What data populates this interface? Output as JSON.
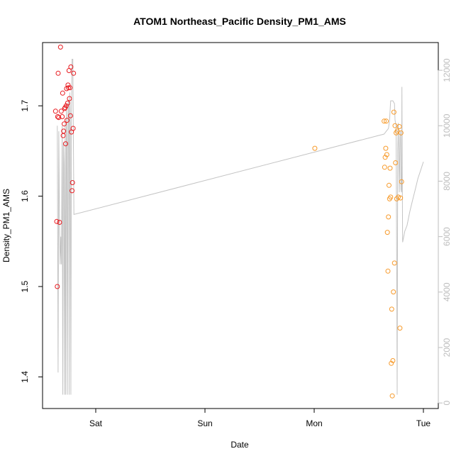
{
  "chart_data": {
    "type": "scatter",
    "title": "ATOM1 Northeast_Pacific Density_PM1_AMS",
    "xlabel": "Date",
    "ylabel": "Density_PM1_AMS",
    "x_range_days": [
      -0.42,
      3.06
    ],
    "ylim": [
      1.365,
      1.77
    ],
    "y_ticks": [
      1.4,
      1.5,
      1.6,
      1.7
    ],
    "y2lim": [
      -200,
      13000
    ],
    "y2_ticks": [
      0,
      2000,
      4000,
      6000,
      8000,
      10000,
      12000
    ],
    "x_ticks": [
      {
        "label": "Sat",
        "day": 0
      },
      {
        "label": "Sun",
        "day": 1
      },
      {
        "label": "Mon",
        "day": 2
      },
      {
        "label": "Tue",
        "day": 3
      }
    ],
    "colors": {
      "series_1": "#e8191e",
      "series_2": "#f79a2a",
      "line": "#c4c4c4",
      "right_axis": "#bdbdbd"
    },
    "series": [
      {
        "color": "#e8191e",
        "points": [
          [
            -0.368,
            1.694
          ],
          [
            -0.357,
            1.572
          ],
          [
            -0.352,
            1.5
          ],
          [
            -0.348,
            1.688
          ],
          [
            -0.344,
            1.736
          ],
          [
            -0.339,
            1.687
          ],
          [
            -0.332,
            1.571
          ],
          [
            -0.323,
            1.765
          ],
          [
            -0.316,
            1.694
          ],
          [
            -0.307,
            1.688
          ],
          [
            -0.303,
            1.714
          ],
          [
            -0.298,
            1.667
          ],
          [
            -0.294,
            1.672
          ],
          [
            -0.289,
            1.68
          ],
          [
            -0.285,
            1.697
          ],
          [
            -0.28,
            1.698
          ],
          [
            -0.276,
            1.658
          ],
          [
            -0.271,
            1.7
          ],
          [
            -0.267,
            1.719
          ],
          [
            -0.263,
            1.684
          ],
          [
            -0.258,
            1.703
          ],
          [
            -0.254,
            1.723
          ],
          [
            -0.25,
            1.72
          ],
          [
            -0.245,
            1.739
          ],
          [
            -0.241,
            1.708
          ],
          [
            -0.236,
            1.72
          ],
          [
            -0.232,
            1.689
          ],
          [
            -0.228,
            1.743
          ],
          [
            -0.223,
            1.671
          ],
          [
            -0.217,
            1.606
          ],
          [
            -0.213,
            1.615
          ],
          [
            -0.207,
            1.675
          ],
          [
            -0.203,
            1.736
          ]
        ]
      },
      {
        "color": "#f79a2a",
        "points": [
          [
            2.006,
            1.653
          ],
          [
            2.64,
            1.683
          ],
          [
            2.645,
            1.632
          ],
          [
            2.65,
            1.643
          ],
          [
            2.655,
            1.653
          ],
          [
            2.66,
            1.683
          ],
          [
            2.665,
            1.646
          ],
          [
            2.67,
            1.56
          ],
          [
            2.675,
            1.517
          ],
          [
            2.68,
            1.577
          ],
          [
            2.685,
            1.612
          ],
          [
            2.69,
            1.597
          ],
          [
            2.695,
            1.631
          ],
          [
            2.7,
            1.599
          ],
          [
            2.706,
            1.415
          ],
          [
            2.71,
            1.475
          ],
          [
            2.715,
            1.379
          ],
          [
            2.72,
            1.418
          ],
          [
            2.725,
            1.494
          ],
          [
            2.73,
            1.693
          ],
          [
            2.735,
            1.526
          ],
          [
            2.74,
            1.678
          ],
          [
            2.745,
            1.637
          ],
          [
            2.75,
            1.67
          ],
          [
            2.755,
            1.597
          ],
          [
            2.76,
            1.672
          ],
          [
            2.77,
            1.599
          ],
          [
            2.78,
            1.677
          ],
          [
            2.785,
            1.454
          ],
          [
            2.79,
            1.598
          ],
          [
            2.795,
            1.67
          ],
          [
            2.8,
            1.616
          ]
        ]
      }
    ],
    "line_series": {
      "axis": "right",
      "color": "#c4c4c4",
      "points": [
        [
          -0.352,
          10000
        ],
        [
          -0.345,
          1100
        ],
        [
          -0.338,
          9800
        ],
        [
          -0.331,
          6200
        ],
        [
          -0.326,
          5000
        ],
        [
          -0.32,
          6000
        ],
        [
          -0.314,
          5000
        ],
        [
          -0.307,
          10000
        ],
        [
          -0.302,
          300
        ],
        [
          -0.296,
          9400
        ],
        [
          -0.291,
          8600
        ],
        [
          -0.286,
          300
        ],
        [
          -0.28,
          10100
        ],
        [
          -0.275,
          300
        ],
        [
          -0.269,
          10800
        ],
        [
          -0.264,
          9400
        ],
        [
          -0.259,
          300
        ],
        [
          -0.253,
          10700
        ],
        [
          -0.248,
          10900
        ],
        [
          -0.243,
          300
        ],
        [
          -0.238,
          11200
        ],
        [
          -0.234,
          10500
        ],
        [
          -0.228,
          300
        ],
        [
          -0.223,
          10200
        ],
        [
          -0.217,
          12400
        ],
        [
          -0.21,
          12400
        ],
        [
          -0.2,
          6800
        ],
        [
          2.64,
          9700
        ],
        [
          2.66,
          9800
        ],
        [
          2.68,
          9900
        ],
        [
          2.69,
          10200
        ],
        [
          2.7,
          10900
        ],
        [
          2.72,
          10900
        ],
        [
          2.735,
          10800
        ],
        [
          2.74,
          10200
        ],
        [
          2.75,
          10000
        ],
        [
          2.755,
          5300
        ],
        [
          2.76,
          300
        ],
        [
          2.765,
          9100
        ],
        [
          2.77,
          10100
        ],
        [
          2.775,
          8800
        ],
        [
          2.78,
          7600
        ],
        [
          2.785,
          9600
        ],
        [
          2.79,
          9800
        ],
        [
          2.795,
          7700
        ],
        [
          2.8,
          7600
        ],
        [
          2.803,
          11400
        ],
        [
          2.806,
          8600
        ],
        [
          2.81,
          5800
        ],
        [
          2.82,
          6000
        ],
        [
          2.83,
          6200
        ],
        [
          2.85,
          6400
        ],
        [
          2.875,
          6900
        ],
        [
          2.9,
          7300
        ],
        [
          2.925,
          7700
        ],
        [
          2.95,
          8100
        ],
        [
          2.975,
          8400
        ],
        [
          3.0,
          8700
        ]
      ]
    }
  }
}
